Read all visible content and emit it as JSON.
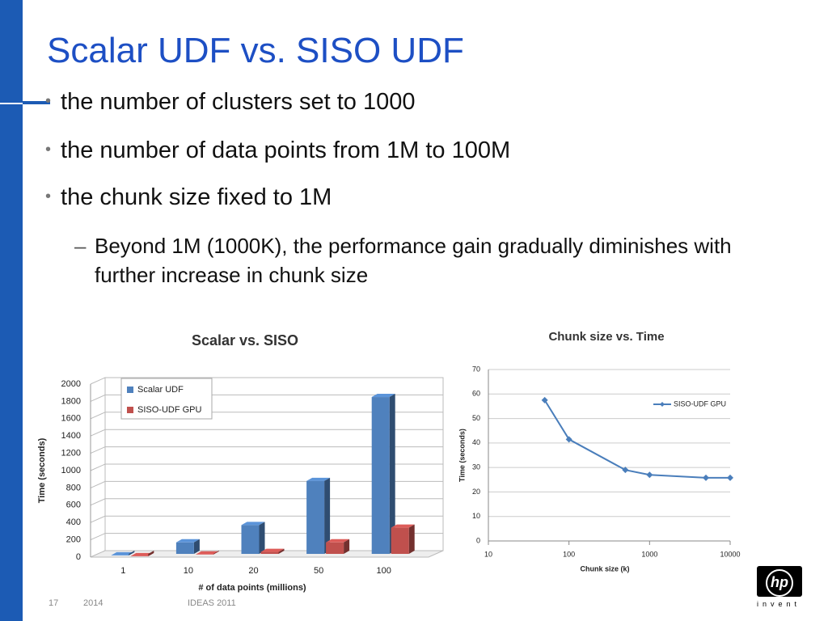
{
  "title": "Scalar UDF vs. SISO UDF",
  "bullets": [
    "the number of clusters set to 1000",
    "the number of data points from 1M to 100M",
    "the chunk size fixed to 1M"
  ],
  "sub_bullets": [
    "Beyond 1M (1000K), the performance gain gradually diminishes with further increase in chunk size"
  ],
  "footer": {
    "page": "17",
    "year": "2014",
    "event": "IDEAS 2011"
  },
  "logo": {
    "mark": "hp",
    "tagline": "invent"
  },
  "chart_data": [
    {
      "type": "bar",
      "title": "Scalar vs. SISO",
      "x_label": "# of data points (millions)",
      "y_label": "Time (seconds)",
      "categories": [
        "1",
        "10",
        "20",
        "50",
        "100"
      ],
      "series": [
        {
          "name": "Scalar UDF",
          "color": "#4f81bd",
          "values": [
            20,
            170,
            370,
            880,
            1850
          ]
        },
        {
          "name": "SISO-UDF GPU",
          "color": "#c0504d",
          "values": [
            10,
            30,
            60,
            170,
            340
          ]
        }
      ],
      "ylim": [
        0,
        2000
      ],
      "yticks": [
        0,
        200,
        400,
        600,
        800,
        1000,
        1200,
        1400,
        1600,
        1800,
        2000
      ],
      "grid": true,
      "legend": "top-left"
    },
    {
      "type": "line",
      "title": "Chunk size vs. Time",
      "x_label": "Chunk size (k)",
      "y_label": "Time (seconds)",
      "x": [
        50,
        100,
        500,
        1000,
        5000,
        10000
      ],
      "series": [
        {
          "name": "SISO-UDF GPU",
          "color": "#4a7ebb",
          "values": [
            57.5,
            41.5,
            29,
            27,
            25.8,
            25.8
          ]
        }
      ],
      "xlim": [
        10,
        10000
      ],
      "xticks": [
        10,
        100,
        1000,
        10000
      ],
      "xscale": "log",
      "ylim": [
        0,
        70
      ],
      "yticks": [
        0,
        10,
        20,
        30,
        40,
        50,
        60,
        70
      ],
      "grid": true,
      "legend": "top-right"
    }
  ]
}
